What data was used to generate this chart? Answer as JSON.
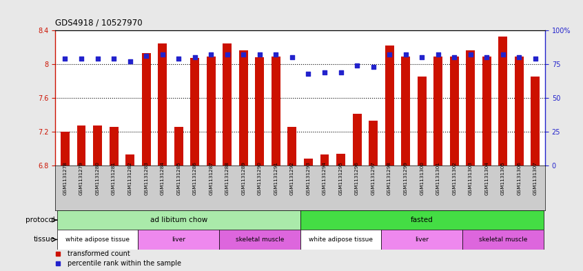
{
  "title": "GDS4918 / 10527970",
  "samples": [
    "GSM1131278",
    "GSM1131279",
    "GSM1131280",
    "GSM1131281",
    "GSM1131282",
    "GSM1131283",
    "GSM1131284",
    "GSM1131285",
    "GSM1131286",
    "GSM1131287",
    "GSM1131288",
    "GSM1131289",
    "GSM1131290",
    "GSM1131291",
    "GSM1131292",
    "GSM1131293",
    "GSM1131294",
    "GSM1131295",
    "GSM1131296",
    "GSM1131297",
    "GSM1131298",
    "GSM1131299",
    "GSM1131300",
    "GSM1131301",
    "GSM1131302",
    "GSM1131303",
    "GSM1131304",
    "GSM1131305",
    "GSM1131306",
    "GSM1131307"
  ],
  "bar_values": [
    7.2,
    7.27,
    7.27,
    7.26,
    6.93,
    8.13,
    8.24,
    7.26,
    8.07,
    8.09,
    8.24,
    8.16,
    8.08,
    8.09,
    7.26,
    6.88,
    6.93,
    6.94,
    7.41,
    7.33,
    8.22,
    8.09,
    7.85,
    8.09,
    8.09,
    8.16,
    8.09,
    8.32,
    8.09,
    7.85
  ],
  "dot_values": [
    79,
    79,
    79,
    79,
    77,
    81,
    82,
    79,
    80,
    82,
    82,
    82,
    82,
    82,
    80,
    68,
    69,
    69,
    74,
    73,
    82,
    82,
    80,
    82,
    80,
    82,
    80,
    82,
    80,
    79
  ],
  "ymin": 6.8,
  "ymax": 8.4,
  "yticks_left": [
    6.8,
    7.2,
    7.6,
    8.0,
    8.4
  ],
  "ytick_labels_left": [
    "6.8",
    "7.2",
    "7.6",
    "8",
    "8.4"
  ],
  "yticks_right": [
    0,
    25,
    50,
    75,
    100
  ],
  "ytick_labels_right": [
    "0",
    "25",
    "50",
    "75",
    "100%"
  ],
  "bar_color": "#cc1100",
  "dot_color": "#2222cc",
  "background_color": "#e8e8e8",
  "plot_bg_color": "#ffffff",
  "xtick_bg_color": "#cccccc",
  "protocol_groups": [
    {
      "label": "ad libitum chow",
      "start": 0,
      "end": 14,
      "color": "#aaeaaa"
    },
    {
      "label": "fasted",
      "start": 15,
      "end": 29,
      "color": "#44dd44"
    }
  ],
  "tissue_groups": [
    {
      "label": "white adipose tissue",
      "start": 0,
      "end": 4,
      "color": "#ffffff"
    },
    {
      "label": "liver",
      "start": 5,
      "end": 9,
      "color": "#ee88ee"
    },
    {
      "label": "skeletal muscle",
      "start": 10,
      "end": 14,
      "color": "#dd66dd"
    },
    {
      "label": "white adipose tissue",
      "start": 15,
      "end": 19,
      "color": "#ffffff"
    },
    {
      "label": "liver",
      "start": 20,
      "end": 24,
      "color": "#ee88ee"
    },
    {
      "label": "skeletal muscle",
      "start": 25,
      "end": 29,
      "color": "#dd66dd"
    }
  ],
  "protocol_label": "protocol",
  "tissue_label": "tissue",
  "legend_bar_label": "transformed count",
  "legend_dot_label": "percentile rank within the sample"
}
